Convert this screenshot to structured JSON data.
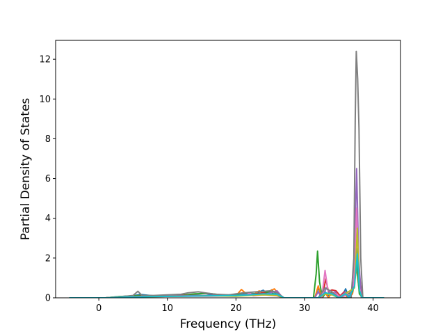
{
  "chart_data": {
    "type": "line",
    "title": "",
    "xlabel": "Frequency (THz)",
    "ylabel": "Partial Density of States",
    "xlim": [
      -6.3,
      44.0
    ],
    "ylim": [
      0,
      12.95
    ],
    "x_ticks": [
      0,
      10,
      20,
      30,
      40
    ],
    "y_ticks": [
      0,
      2,
      4,
      6,
      8,
      10,
      12
    ],
    "grid": false,
    "legend": "none",
    "series": [
      {
        "color": "#1f77b4",
        "points": [
          [
            -4.3,
            0
          ],
          [
            1,
            0
          ],
          [
            3,
            0.06
          ],
          [
            5,
            0.1
          ],
          [
            6,
            0.17
          ],
          [
            8,
            0.1
          ],
          [
            10,
            0.09
          ],
          [
            12,
            0.12
          ],
          [
            14,
            0.18
          ],
          [
            15.5,
            0.22
          ],
          [
            17,
            0.12
          ],
          [
            19,
            0.15
          ],
          [
            21,
            0.2
          ],
          [
            22.5,
            0.17
          ],
          [
            24,
            0.38
          ],
          [
            24.6,
            0.18
          ],
          [
            25.2,
            0.4
          ],
          [
            26,
            0.15
          ],
          [
            27,
            0
          ],
          [
            31.5,
            0
          ],
          [
            32,
            0.5
          ],
          [
            32.5,
            0
          ],
          [
            33,
            0.3
          ],
          [
            33.5,
            0.12
          ],
          [
            34.5,
            0.2
          ],
          [
            35,
            0
          ],
          [
            35.5,
            0.1
          ],
          [
            36,
            0.45
          ],
          [
            36.5,
            0
          ],
          [
            37,
            0.3
          ],
          [
            37.4,
            1.3
          ],
          [
            37.6,
            2.5
          ],
          [
            37.9,
            1.1
          ],
          [
            38.3,
            0
          ],
          [
            41.6,
            0
          ]
        ]
      },
      {
        "color": "#ff7f0e",
        "points": [
          [
            -4.3,
            0
          ],
          [
            1,
            0
          ],
          [
            3,
            0.05
          ],
          [
            6,
            0.1
          ],
          [
            8,
            0.08
          ],
          [
            10,
            0.12
          ],
          [
            12,
            0.1
          ],
          [
            14,
            0.12
          ],
          [
            16,
            0.1
          ],
          [
            18,
            0.12
          ],
          [
            20,
            0.1
          ],
          [
            20.8,
            0.42
          ],
          [
            21.5,
            0.2
          ],
          [
            22.5,
            0.15
          ],
          [
            23.4,
            0.35
          ],
          [
            24,
            0.2
          ],
          [
            25.6,
            0.45
          ],
          [
            26.2,
            0.2
          ],
          [
            27,
            0
          ],
          [
            31.5,
            0
          ],
          [
            32,
            0.6
          ],
          [
            32.5,
            0
          ],
          [
            33,
            0.25
          ],
          [
            33.5,
            0
          ],
          [
            34,
            0.3
          ],
          [
            35,
            0
          ],
          [
            35.8,
            0.2
          ],
          [
            36.3,
            0
          ],
          [
            37,
            0.2
          ],
          [
            37.6,
            1.5
          ],
          [
            38,
            0.3
          ],
          [
            38.5,
            0
          ],
          [
            41.6,
            0
          ]
        ]
      },
      {
        "color": "#2ca02c",
        "points": [
          [
            -4.3,
            0
          ],
          [
            1,
            0
          ],
          [
            3,
            0.06
          ],
          [
            6,
            0.12
          ],
          [
            8,
            0.1
          ],
          [
            10,
            0.14
          ],
          [
            12,
            0.12
          ],
          [
            14,
            0.2
          ],
          [
            16,
            0.22
          ],
          [
            18,
            0.15
          ],
          [
            20,
            0.12
          ],
          [
            21,
            0.25
          ],
          [
            23,
            0.2
          ],
          [
            25,
            0.3
          ],
          [
            26,
            0.1
          ],
          [
            27,
            0
          ],
          [
            31.3,
            0
          ],
          [
            31.7,
            1.2
          ],
          [
            31.9,
            2.35
          ],
          [
            32.2,
            0.8
          ],
          [
            32.6,
            0
          ],
          [
            33,
            0.2
          ],
          [
            34,
            0.25
          ],
          [
            35,
            0
          ],
          [
            37,
            0.3
          ],
          [
            37.6,
            1.8
          ],
          [
            38,
            0.2
          ],
          [
            38.5,
            0
          ],
          [
            41.6,
            0
          ]
        ]
      },
      {
        "color": "#d62728",
        "points": [
          [
            -4.3,
            0
          ],
          [
            1,
            0
          ],
          [
            3,
            0.04
          ],
          [
            6,
            0.08
          ],
          [
            8,
            0.1
          ],
          [
            12,
            0.12
          ],
          [
            16,
            0.1
          ],
          [
            20,
            0.12
          ],
          [
            22,
            0.15
          ],
          [
            24,
            0.25
          ],
          [
            26,
            0.1
          ],
          [
            27,
            0
          ],
          [
            32.2,
            0
          ],
          [
            32.8,
            0.4
          ],
          [
            33.1,
            0.95
          ],
          [
            33.5,
            0.3
          ],
          [
            34,
            0.4
          ],
          [
            34.6,
            0.35
          ],
          [
            35.2,
            0.1
          ],
          [
            35.8,
            0.3
          ],
          [
            36.4,
            0
          ],
          [
            37,
            0.4
          ],
          [
            37.7,
            2.0
          ],
          [
            38,
            1.2
          ],
          [
            38.4,
            0
          ],
          [
            41.6,
            0
          ]
        ]
      },
      {
        "color": "#9467bd",
        "points": [
          [
            -4.3,
            0
          ],
          [
            1,
            0
          ],
          [
            4,
            0.05
          ],
          [
            8,
            0.08
          ],
          [
            12,
            0.1
          ],
          [
            16,
            0.12
          ],
          [
            20,
            0.1
          ],
          [
            22,
            0.2
          ],
          [
            24,
            0.15
          ],
          [
            26,
            0.35
          ],
          [
            26.6,
            0.1
          ],
          [
            27,
            0
          ],
          [
            31.5,
            0
          ],
          [
            32,
            0.3
          ],
          [
            32.5,
            0
          ],
          [
            33.2,
            0.5
          ],
          [
            33.8,
            0.2
          ],
          [
            34.5,
            0.3
          ],
          [
            35,
            0
          ],
          [
            36,
            0.3
          ],
          [
            36.5,
            0
          ],
          [
            37.2,
            0.8
          ],
          [
            37.6,
            6.5
          ],
          [
            37.9,
            2.0
          ],
          [
            38.3,
            0
          ],
          [
            41.6,
            0
          ]
        ]
      },
      {
        "color": "#e377c2",
        "points": [
          [
            -4.3,
            0
          ],
          [
            1,
            0
          ],
          [
            4,
            0.05
          ],
          [
            8,
            0.06
          ],
          [
            12,
            0.08
          ],
          [
            16,
            0.08
          ],
          [
            20,
            0.1
          ],
          [
            21.5,
            0.12
          ],
          [
            22,
            0.25
          ],
          [
            22.5,
            0.1
          ],
          [
            24,
            0.15
          ],
          [
            26,
            0.1
          ],
          [
            27,
            0
          ],
          [
            32.5,
            0
          ],
          [
            33,
            1.38
          ],
          [
            33.4,
            0.4
          ],
          [
            34,
            0.3
          ],
          [
            35,
            0.1
          ],
          [
            35.5,
            0
          ],
          [
            37.2,
            0.5
          ],
          [
            37.6,
            4.5
          ],
          [
            38,
            0.5
          ],
          [
            38.4,
            0
          ],
          [
            41.6,
            0
          ]
        ]
      },
      {
        "color": "#7f7f7f",
        "points": [
          [
            -4.3,
            0
          ],
          [
            1,
            0
          ],
          [
            3,
            0.05
          ],
          [
            5,
            0.12
          ],
          [
            5.7,
            0.33
          ],
          [
            6.3,
            0.12
          ],
          [
            8,
            0.12
          ],
          [
            10,
            0.15
          ],
          [
            12,
            0.18
          ],
          [
            13,
            0.25
          ],
          [
            14.5,
            0.3
          ],
          [
            15.5,
            0.25
          ],
          [
            17,
            0.18
          ],
          [
            19,
            0.15
          ],
          [
            21,
            0.25
          ],
          [
            23,
            0.3
          ],
          [
            25,
            0.35
          ],
          [
            26,
            0.25
          ],
          [
            27,
            0
          ],
          [
            32,
            0
          ],
          [
            33,
            0.5
          ],
          [
            34,
            0.3
          ],
          [
            35,
            0
          ],
          [
            36.8,
            0
          ],
          [
            37.2,
            2.0
          ],
          [
            37.4,
            9.0
          ],
          [
            37.55,
            12.4
          ],
          [
            37.75,
            11.0
          ],
          [
            37.95,
            8.5
          ],
          [
            38.2,
            2.0
          ],
          [
            38.5,
            0
          ],
          [
            41.6,
            0
          ]
        ]
      },
      {
        "color": "#bcbd22",
        "points": [
          [
            -4.3,
            0
          ],
          [
            1,
            0
          ],
          [
            4,
            0.04
          ],
          [
            8,
            0.06
          ],
          [
            12,
            0.08
          ],
          [
            16,
            0.1
          ],
          [
            20,
            0.08
          ],
          [
            22,
            0.12
          ],
          [
            24,
            0.15
          ],
          [
            26,
            0.12
          ],
          [
            27,
            0
          ],
          [
            32,
            0
          ],
          [
            33,
            0.2
          ],
          [
            34,
            0.15
          ],
          [
            35,
            0
          ],
          [
            37.3,
            0.5
          ],
          [
            37.7,
            3.5
          ],
          [
            38,
            0.4
          ],
          [
            38.4,
            0
          ],
          [
            41.6,
            0
          ]
        ]
      },
      {
        "color": "#17becf",
        "points": [
          [
            -4.3,
            0
          ],
          [
            1,
            0
          ],
          [
            4,
            0.04
          ],
          [
            8,
            0.06
          ],
          [
            12,
            0.08
          ],
          [
            16,
            0.1
          ],
          [
            20,
            0.12
          ],
          [
            22,
            0.15
          ],
          [
            24,
            0.2
          ],
          [
            26,
            0.18
          ],
          [
            27,
            0
          ],
          [
            32,
            0
          ],
          [
            33,
            0.25
          ],
          [
            34,
            0.2
          ],
          [
            35,
            0
          ],
          [
            36,
            0.2
          ],
          [
            36.5,
            0
          ],
          [
            37.3,
            0.6
          ],
          [
            37.7,
            2.2
          ],
          [
            38,
            0.4
          ],
          [
            38.4,
            0
          ],
          [
            41.6,
            0
          ]
        ]
      }
    ]
  }
}
